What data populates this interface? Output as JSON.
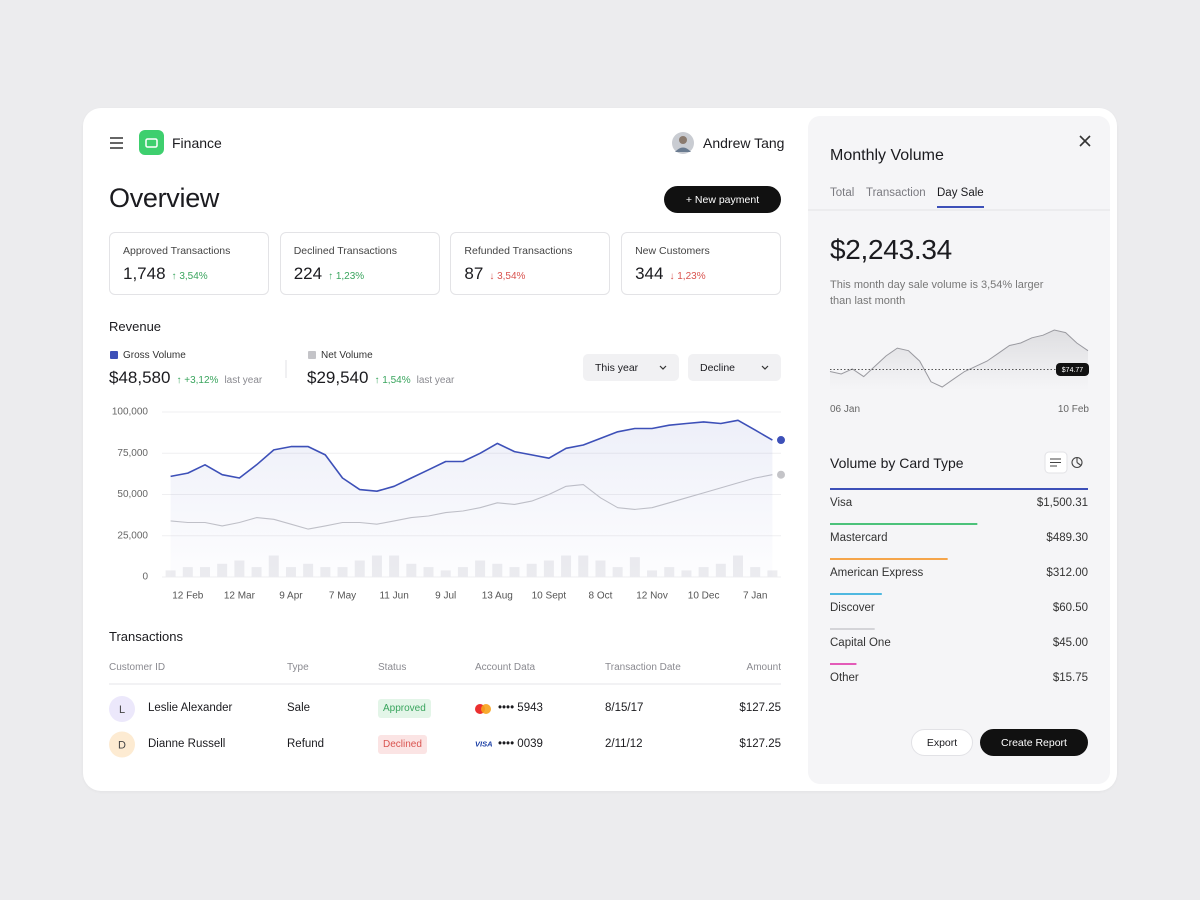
{
  "header": {
    "app_name": "Finance",
    "user_name": "Andrew Tang"
  },
  "page": {
    "title": "Overview",
    "new_payment": "+ New payment"
  },
  "stats": [
    {
      "label": "Approved Transactions",
      "value": "1,748",
      "change": "↑ 3,54%",
      "trend": "up"
    },
    {
      "label": "Declined Transactions",
      "value": "224",
      "change": "↑ 1,23%",
      "trend": "up"
    },
    {
      "label": "Refunded Transactions",
      "value": "87",
      "change": "↓ 3,54%",
      "trend": "down"
    },
    {
      "label": "New Customers",
      "value": "344",
      "change": "↓ 1,23%",
      "trend": "down"
    }
  ],
  "revenue": {
    "title": "Revenue",
    "filters": [
      "This year",
      "Decline"
    ],
    "summary": [
      {
        "value": "$48,580",
        "change": "↑ +3,12%",
        "suffix": "last year"
      },
      {
        "value": "$29,540",
        "change": "↑ 1,54%",
        "suffix": "last year"
      }
    ]
  },
  "chart_data": {
    "type": "line",
    "categories": [
      null,
      "12 Feb",
      null,
      null,
      "12 Mar",
      null,
      null,
      "9 Apr",
      null,
      null,
      "7 May",
      null,
      null,
      "11 Jun",
      null,
      null,
      "9 Jul",
      null,
      null,
      "13 Aug",
      null,
      null,
      "10 Sept",
      null,
      null,
      "8 Oct",
      null,
      null,
      "12 Nov",
      null,
      null,
      "10 Dec",
      null,
      null,
      "7 Jan",
      null
    ],
    "series": [
      {
        "name": "Gross Volume",
        "color": "#3d50b8",
        "values": [
          61000,
          63000,
          68000,
          62000,
          60000,
          68000,
          77000,
          79000,
          79000,
          74000,
          60000,
          53000,
          52000,
          55000,
          60000,
          65000,
          70000,
          70000,
          75000,
          81000,
          76000,
          74000,
          72000,
          78000,
          80000,
          84000,
          88000,
          90000,
          90000,
          92000,
          93000,
          94000,
          93000,
          95000,
          89000,
          83000
        ]
      },
      {
        "name": "Net Volume",
        "color": "#c4c4c8",
        "values": [
          34000,
          33000,
          33000,
          31000,
          33000,
          36000,
          35000,
          32000,
          29000,
          31000,
          33000,
          33000,
          32000,
          34000,
          36000,
          37000,
          39000,
          40000,
          42000,
          45000,
          44000,
          46000,
          50000,
          55000,
          56000,
          48000,
          42000,
          41000,
          42000,
          45000,
          48000,
          51000,
          54000,
          57000,
          60000,
          62000
        ]
      }
    ],
    "bars": {
      "color": "#ededf0",
      "values": [
        4000,
        6000,
        6000,
        8000,
        10000,
        6000,
        13000,
        6000,
        8000,
        6000,
        6000,
        10000,
        13000,
        13000,
        8000,
        6000,
        4000,
        6000,
        10000,
        8000,
        6000,
        8000,
        10000,
        13000,
        13000,
        10000,
        6000,
        12000,
        4000,
        6000,
        4000,
        6000,
        8000,
        13000,
        6000,
        4000
      ]
    },
    "ylim": [
      0,
      100000
    ],
    "yticks": [
      0,
      {
        "value": 25000,
        "label": "25,000"
      },
      {
        "value": 50000,
        "label": "50,000"
      },
      {
        "value": 75000,
        "label": "75,000"
      },
      {
        "value": 100000,
        "label": "100,000"
      }
    ],
    "grid": true
  },
  "transactions": {
    "title": "Transactions",
    "columns": [
      "Customer ID",
      "Type",
      "Status",
      "Account Data",
      "Transaction Date",
      "Amount"
    ],
    "rows": [
      {
        "initial": "L",
        "avatar_color": "#ece8fb",
        "name": "Leslie Alexander",
        "type": "Sale",
        "status": "Approved",
        "status_tone": "success",
        "brand": "mastercard",
        "card_number": "•••• 5943",
        "date": "8/15/17",
        "amount": "$127.25"
      },
      {
        "initial": "D",
        "avatar_color": "#fdebd2",
        "name": "Dianne Russell",
        "type": "Refund",
        "status": "Declined",
        "status_tone": "danger",
        "brand": "visa",
        "logo": "VISA",
        "card_number": "•••• 0039",
        "date": "2/11/12",
        "amount": "$127.25"
      }
    ]
  },
  "panel": {
    "title": "Monthly Volume",
    "tabs": [
      "Total",
      "Transaction",
      "Day Sale"
    ],
    "active_tab": 2,
    "amount": "$2,243.34",
    "description": "This month day sale volume is 3,54% larger than last month",
    "sparkline": {
      "values": [
        74,
        73,
        75,
        72,
        76,
        80,
        83,
        82,
        78,
        70,
        68,
        71,
        74,
        76,
        78,
        81,
        84,
        85,
        87,
        88,
        90,
        89,
        85,
        82
      ],
      "reference": 74.77,
      "reference_label": "$74.77",
      "start": "06 Jan",
      "end": "10 Feb"
    },
    "card_types": {
      "title": "Volume by Card Type",
      "items": [
        {
          "name": "Visa",
          "color": "#3d50b8",
          "value": 1500.31,
          "value_label": "$1,500.31"
        },
        {
          "name": "Mastercard",
          "color": "#4cc27a",
          "value": 489.3,
          "value_label": "$489.30"
        },
        {
          "name": "American Express",
          "color": "#f5a54a",
          "value": 312.0,
          "value_label": "$312.00"
        },
        {
          "name": "Discover",
          "color": "#4fb8e0",
          "value": 60.5,
          "value_label": "$60.50"
        },
        {
          "name": "Capital One",
          "color": "#d4d4d8",
          "value": 45.0,
          "value_label": "$45.00"
        },
        {
          "name": "Other",
          "color": "#e35bb8",
          "value": 15.75,
          "value_label": "$15.75"
        }
      ]
    },
    "buttons": [
      "Export",
      "Create Report"
    ]
  }
}
